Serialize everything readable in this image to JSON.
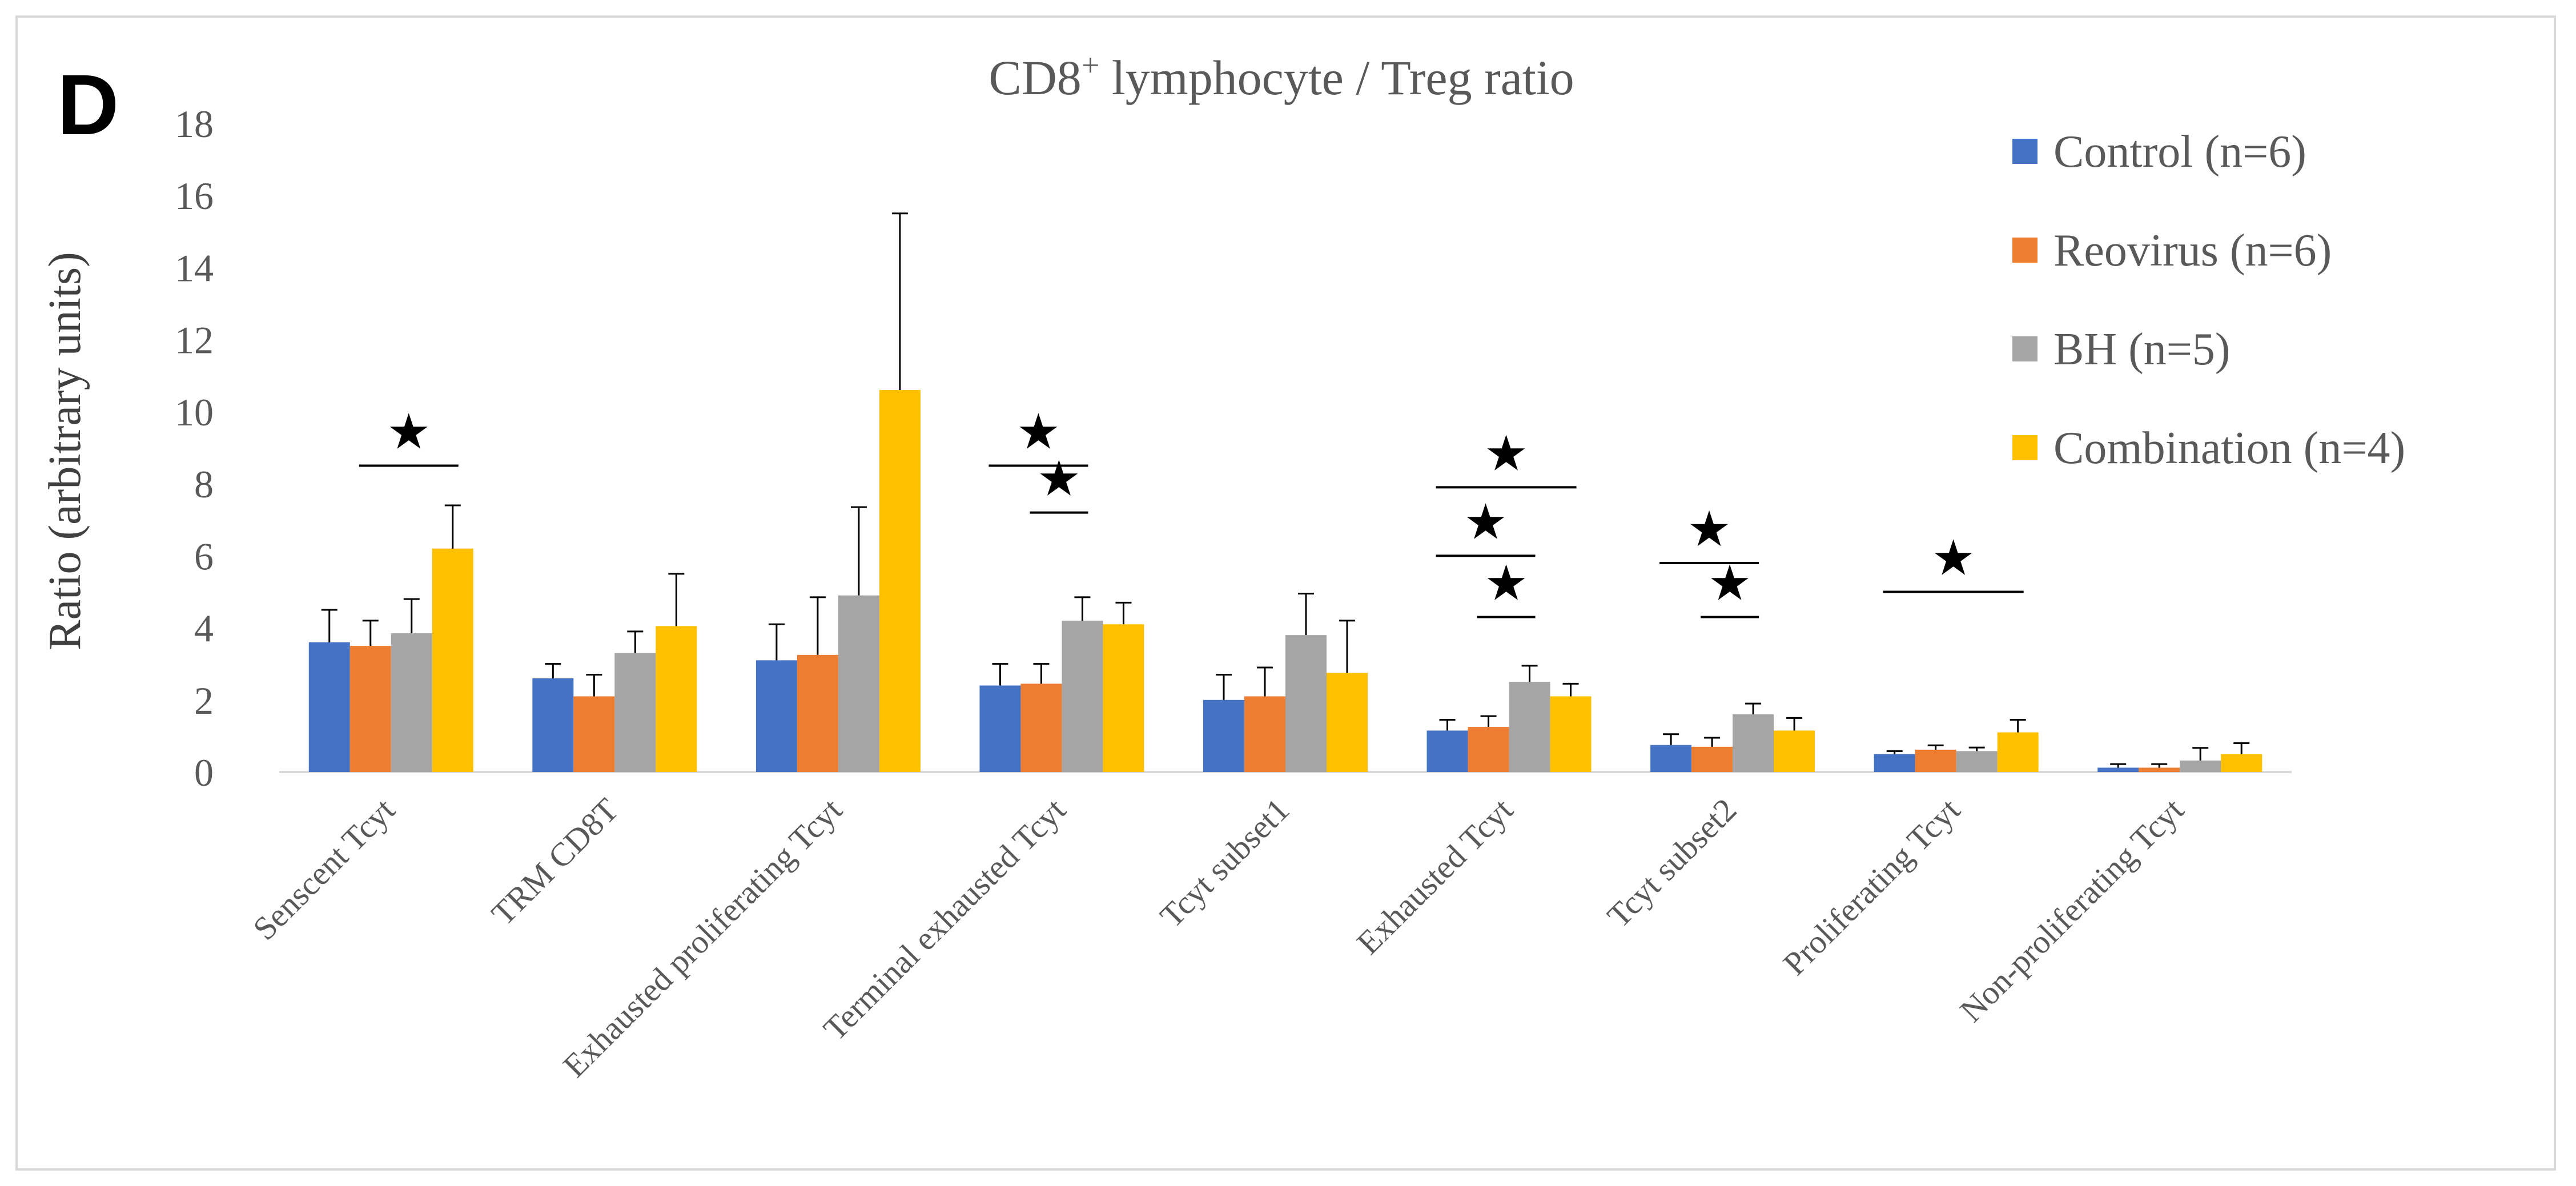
{
  "panel_label": "D",
  "chart_data": {
    "type": "bar",
    "title_main": "CD8",
    "title_sup": "+",
    "title_rest": " lymphocyte / Treg ratio",
    "xlabel": "",
    "ylabel": "Ratio (arbitrary units)",
    "ylim": [
      0,
      18
    ],
    "yticks": [
      "0",
      "2",
      "4",
      "6",
      "8",
      "10",
      "12",
      "14",
      "16",
      "18"
    ],
    "grid": false,
    "legend_position": "right",
    "categories": [
      "Senscent Tcyt",
      "TRM CD8T",
      "Exhausted proliferating Tcyt",
      "Terminal exhausted Tcyt",
      "Tcyt subset1",
      "Exhausted Tcyt",
      "Tcyt subset2",
      "Proliferating Tcyt",
      "Non-proliferating Tcyt"
    ],
    "series": [
      {
        "name": "Control (n=6)",
        "color": "#4472C4",
        "values": [
          3.6,
          2.6,
          3.1,
          2.4,
          2.0,
          1.15,
          0.75,
          0.5,
          0.12
        ],
        "errors": [
          0.9,
          0.4,
          1.0,
          0.6,
          0.7,
          0.3,
          0.3,
          0.08,
          0.1
        ]
      },
      {
        "name": "Reovirus (n=6)",
        "color": "#ED7D31",
        "values": [
          3.5,
          2.1,
          3.25,
          2.45,
          2.1,
          1.25,
          0.7,
          0.62,
          0.12
        ],
        "errors": [
          0.7,
          0.6,
          1.6,
          0.55,
          0.8,
          0.3,
          0.25,
          0.12,
          0.1
        ]
      },
      {
        "name": "BH (n=5)",
        "color": "#A5A5A5",
        "values": [
          3.85,
          3.3,
          4.9,
          4.2,
          3.8,
          2.5,
          1.6,
          0.58,
          0.32
        ],
        "errors": [
          0.95,
          0.6,
          2.45,
          0.65,
          1.15,
          0.45,
          0.3,
          0.1,
          0.35
        ]
      },
      {
        "name": "Combination (n=4)",
        "color": "#FFC000",
        "values": [
          6.2,
          4.05,
          10.6,
          4.1,
          2.75,
          2.1,
          1.15,
          1.1,
          0.5
        ],
        "errors": [
          1.2,
          1.45,
          4.9,
          0.6,
          1.45,
          0.35,
          0.35,
          0.35,
          0.3
        ]
      }
    ],
    "significance": [
      {
        "category": 0,
        "from": 1,
        "to": 3,
        "level": 8.5,
        "marker": "★"
      },
      {
        "category": 3,
        "from": 0,
        "to": 2,
        "level": 8.5,
        "marker": "★"
      },
      {
        "category": 3,
        "from": 1,
        "to": 2,
        "level": 7.2,
        "marker": "★"
      },
      {
        "category": 5,
        "from": 0,
        "to": 3,
        "level": 7.9,
        "marker": "★"
      },
      {
        "category": 5,
        "from": 0,
        "to": 2,
        "level": 6.0,
        "marker": "★"
      },
      {
        "category": 5,
        "from": 1,
        "to": 2,
        "level": 4.3,
        "marker": "★"
      },
      {
        "category": 6,
        "from": 0,
        "to": 2,
        "level": 5.8,
        "marker": "★"
      },
      {
        "category": 6,
        "from": 1,
        "to": 2,
        "level": 4.3,
        "marker": "★"
      },
      {
        "category": 7,
        "from": 0,
        "to": 3,
        "level": 5.0,
        "marker": "★"
      }
    ]
  }
}
